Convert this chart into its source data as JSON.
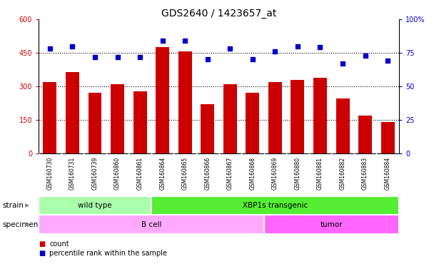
{
  "title": "GDS2640 / 1423657_at",
  "samples": [
    "GSM160730",
    "GSM160731",
    "GSM160739",
    "GSM160860",
    "GSM160861",
    "GSM160864",
    "GSM160865",
    "GSM160866",
    "GSM160867",
    "GSM160868",
    "GSM160869",
    "GSM160880",
    "GSM160881",
    "GSM160882",
    "GSM160883",
    "GSM160884"
  ],
  "counts": [
    320,
    365,
    270,
    308,
    278,
    475,
    455,
    220,
    308,
    272,
    318,
    330,
    338,
    245,
    168,
    142
  ],
  "percentiles": [
    78,
    80,
    72,
    72,
    72,
    84,
    84,
    70,
    78,
    70,
    76,
    80,
    79,
    67,
    73,
    69
  ],
  "bar_color": "#cc0000",
  "dot_color": "#0000cc",
  "ylim_left": [
    0,
    600
  ],
  "ylim_right": [
    0,
    100
  ],
  "yticks_left": [
    0,
    150,
    300,
    450,
    600
  ],
  "ytick_labels_left": [
    "0",
    "150",
    "300",
    "450",
    "600"
  ],
  "yticks_right": [
    0,
    25,
    50,
    75,
    100
  ],
  "ytick_labels_right": [
    "0",
    "25",
    "50",
    "75",
    "100%"
  ],
  "grid_lines": [
    150,
    300,
    450
  ],
  "strain_groups": [
    {
      "label": "wild type",
      "start": 0,
      "end": 5,
      "color": "#aaffaa"
    },
    {
      "label": "XBP1s transgenic",
      "start": 5,
      "end": 16,
      "color": "#55ee33"
    }
  ],
  "specimen_groups": [
    {
      "label": "B cell",
      "start": 0,
      "end": 10,
      "color": "#ffaaff"
    },
    {
      "label": "tumor",
      "start": 10,
      "end": 16,
      "color": "#ff66ff"
    }
  ],
  "legend_count_color": "#cc0000",
  "legend_dot_color": "#0000cc",
  "title_fontsize": 10,
  "axis_label_color_left": "#cc0000",
  "axis_label_color_right": "#0000cc",
  "background_color": "#ffffff",
  "tick_area_color": "#cccccc"
}
